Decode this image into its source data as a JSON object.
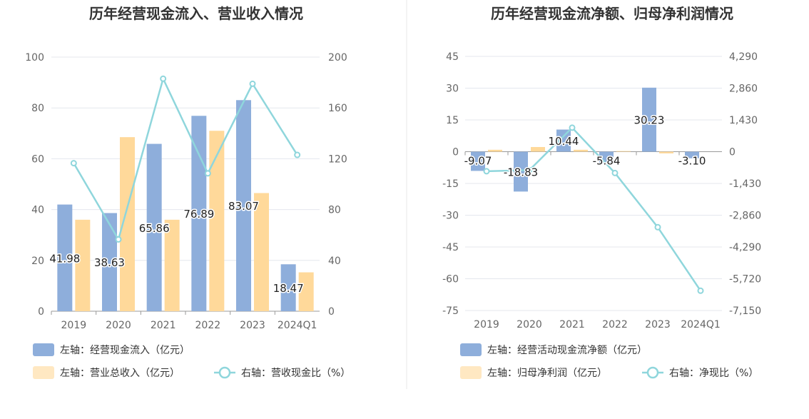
{
  "chart_data": [
    {
      "type": "bar",
      "title": "历年经营现金流入、营业收入情况",
      "categories": [
        "2019",
        "2020",
        "2021",
        "2022",
        "2023",
        "2024Q1"
      ],
      "y_left": {
        "ylim": [
          0,
          100
        ],
        "ticks": [
          "100",
          "80",
          "60",
          "40",
          "20",
          "0"
        ]
      },
      "y_right": {
        "ylim": [
          0,
          200
        ],
        "ticks": [
          "200",
          "160",
          "120",
          "80",
          "40",
          "0"
        ]
      },
      "series": [
        {
          "name": "左轴：经营现金流入（亿元）",
          "type": "bar",
          "axis": "left",
          "color": "#8eaedb",
          "values": [
            41.98,
            38.63,
            65.86,
            76.89,
            83.07,
            18.47
          ],
          "labels": [
            "41.98",
            "38.63",
            "65.86",
            "76.89",
            "83.07",
            "18.47"
          ]
        },
        {
          "name": "左轴：营业总收入（亿元）",
          "type": "bar",
          "axis": "left",
          "color": "#ffd99a",
          "values": [
            36,
            68.5,
            36,
            71,
            46.5,
            15.3
          ]
        },
        {
          "name": "右轴：营收现金比（%）",
          "type": "line",
          "axis": "right",
          "color": "#8fd6dc",
          "values": [
            116.5,
            56.5,
            183,
            108.5,
            179,
            123
          ]
        }
      ],
      "legend": "bottom-left",
      "grid": true
    },
    {
      "type": "bar",
      "title": "历年经营现金流净额、归母净利润情况",
      "categories": [
        "2019",
        "2020",
        "2021",
        "2022",
        "2023",
        "2024Q1"
      ],
      "y_left": {
        "ylim": [
          -75,
          45
        ],
        "ticks": [
          "45",
          "30",
          "15",
          "0",
          "-15",
          "-30",
          "-45",
          "-60",
          "-75"
        ]
      },
      "y_right": {
        "ylim": [
          -7150,
          4290
        ],
        "ticks": [
          "4,290",
          "2,860",
          "1,430",
          "0",
          "-1,430",
          "-2,860",
          "-4,290",
          "-5,720",
          "-7,150"
        ]
      },
      "series": [
        {
          "name": "左轴：经营活动现金流净额（亿元）",
          "type": "bar",
          "axis": "left",
          "color": "#8eaedb",
          "values": [
            -9.07,
            -18.83,
            10.44,
            -5.84,
            30.23,
            -3.1
          ],
          "labels": [
            "-9.07",
            "-18.83",
            "10.44",
            "-5.84",
            "30.23",
            "-3.10"
          ]
        },
        {
          "name": "左轴：归母净利润（亿元）",
          "type": "bar",
          "axis": "left",
          "color": "#ffd99a",
          "values": [
            0.9,
            2.2,
            0.9,
            0.3,
            -0.8,
            0
          ]
        },
        {
          "name": "右轴：净现比（%）",
          "type": "line",
          "axis": "right",
          "color": "#8fd6dc",
          "values": [
            -880,
            -830,
            1080,
            -960,
            -3400,
            -6260
          ]
        }
      ],
      "legend": "bottom-left",
      "grid": true
    }
  ]
}
